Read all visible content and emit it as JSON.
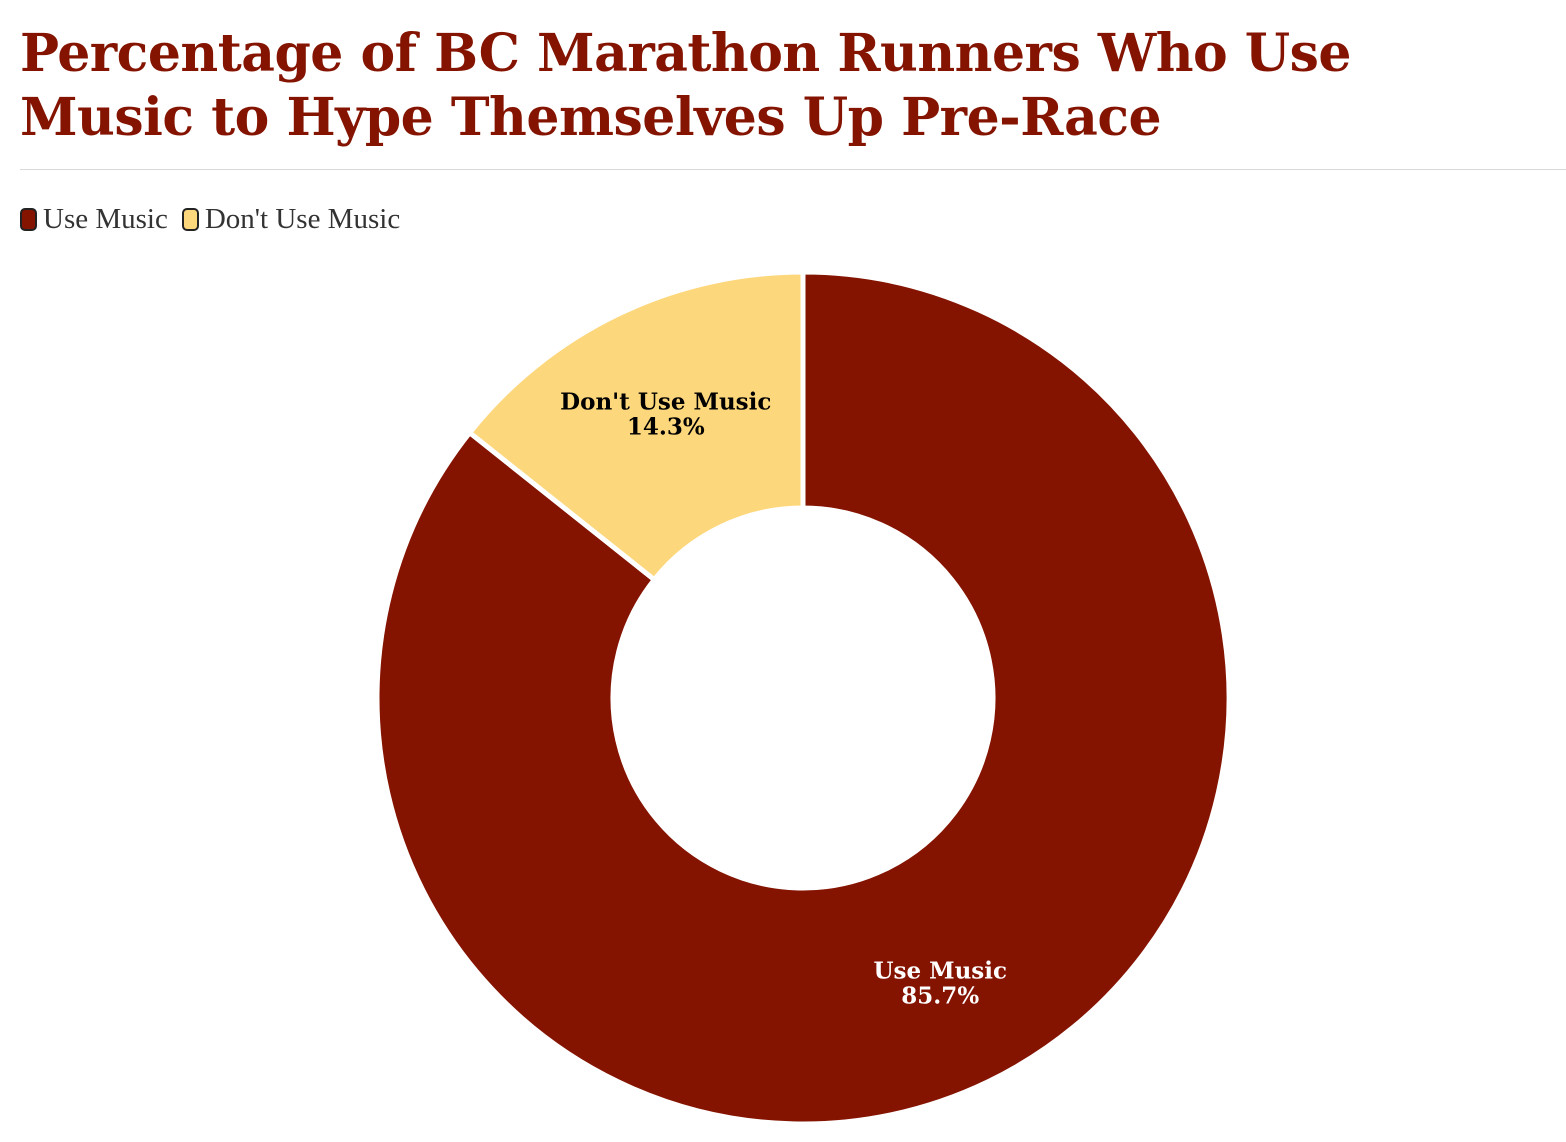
{
  "title": "Percentage of BC Marathon Runners Who Use Music to Hype Themselves Up Pre-Race",
  "legend": [
    {
      "label": "Use Music",
      "color": "#841300"
    },
    {
      "label": "Don't Use Music",
      "color": "#FDD77C"
    }
  ],
  "chart_data": {
    "type": "pie",
    "donut": true,
    "title": "Percentage of BC Marathon Runners Who Use Music to Hype Themselves Up Pre-Race",
    "legend_position": "top-left",
    "slices": [
      {
        "label": "Use Music",
        "value": 85.7,
        "value_label": "85.7%",
        "color": "#841300",
        "label_color": "#ffffff"
      },
      {
        "label": "Don't Use Music",
        "value": 14.3,
        "value_label": "14.3%",
        "color": "#FDD77C",
        "label_color": "#000000"
      }
    ]
  }
}
